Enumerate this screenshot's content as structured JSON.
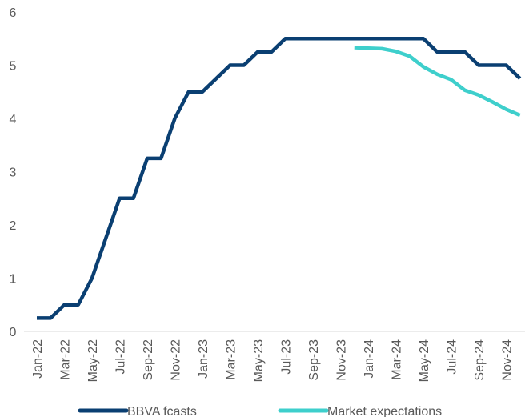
{
  "chart_data": {
    "type": "line",
    "categories": [
      "Jan-22",
      null,
      "Mar-22",
      null,
      "May-22",
      null,
      "Jul-22",
      null,
      "Sep-22",
      null,
      "Nov-22",
      null,
      "Jan-23",
      null,
      "Mar-23",
      null,
      "May-23",
      null,
      "Jul-23",
      null,
      "Sep-23",
      null,
      "Nov-23",
      null,
      "Jan-24",
      null,
      "Mar-24",
      null,
      "May-24",
      null,
      "Jul-24",
      null,
      "Sep-24",
      null,
      "Nov-24",
      null
    ],
    "series": [
      {
        "name": "BBVA fcasts",
        "color": "#0a3f72",
        "values": [
          0.25,
          0.25,
          0.5,
          0.5,
          1.0,
          1.75,
          2.5,
          2.5,
          3.25,
          3.25,
          4.0,
          4.5,
          4.5,
          4.75,
          5.0,
          5.0,
          5.25,
          5.25,
          5.5,
          5.5,
          5.5,
          5.5,
          5.5,
          5.5,
          5.5,
          5.5,
          5.5,
          5.5,
          5.5,
          5.25,
          5.25,
          5.25,
          5.0,
          5.0,
          5.0,
          4.75
        ]
      },
      {
        "name": "Market expectations",
        "color": "#3ecfcc",
        "values": [
          null,
          null,
          null,
          null,
          null,
          null,
          null,
          null,
          null,
          null,
          null,
          null,
          null,
          null,
          null,
          null,
          null,
          null,
          null,
          null,
          null,
          null,
          null,
          5.33,
          5.32,
          5.31,
          5.26,
          5.17,
          4.97,
          4.83,
          4.73,
          4.53,
          4.44,
          4.31,
          4.17,
          4.06
        ]
      }
    ],
    "ylim": [
      0,
      6
    ],
    "yticks": [
      0,
      1,
      2,
      3,
      4,
      5,
      6
    ],
    "legend": "bottom"
  }
}
